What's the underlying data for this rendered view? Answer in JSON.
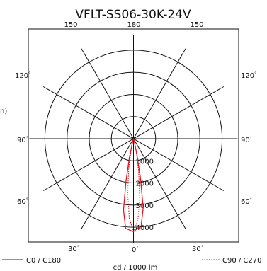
{
  "chart_data": {
    "type": "polar",
    "title": "VFLT-SS06-30K-24V",
    "unit_label": "cd / 1000 lm",
    "y_axis_fragment": "n)",
    "radial_ticks": [
      1000,
      2000,
      3000,
      4000
    ],
    "radial_max": 4700,
    "angle_labels": {
      "top": [
        "150",
        "180",
        "150"
      ],
      "left": [
        "120",
        "90",
        "60",
        "30"
      ],
      "right": [
        "120",
        "90",
        "60",
        "30"
      ],
      "bottom_center": "0"
    },
    "degree_symbol": "°",
    "series": [
      {
        "name": "C0 / C180",
        "color": "#e8141c",
        "style": "solid",
        "points_ccw": [
          [
            0,
            4200
          ],
          [
            5,
            4070
          ],
          [
            8,
            3250
          ],
          [
            10,
            1950
          ],
          [
            12,
            900
          ],
          [
            15,
            200
          ],
          [
            18,
            30
          ],
          [
            25,
            0
          ]
        ],
        "points_cw": [
          [
            0,
            4200
          ],
          [
            5,
            3950
          ],
          [
            8,
            3150
          ],
          [
            10,
            1800
          ],
          [
            12,
            700
          ],
          [
            15,
            150
          ],
          [
            18,
            20
          ],
          [
            25,
            0
          ]
        ]
      },
      {
        "name": "C90 / C270",
        "color": "#e8141c",
        "style": "dotted",
        "points_ccw": [
          [
            0,
            4200
          ],
          [
            3,
            3600
          ],
          [
            6,
            2500
          ],
          [
            9,
            1400
          ],
          [
            12,
            500
          ],
          [
            15,
            120
          ],
          [
            20,
            0
          ]
        ],
        "points_cw": [
          [
            0,
            4200
          ],
          [
            3,
            3700
          ],
          [
            6,
            2700
          ],
          [
            9,
            1500
          ],
          [
            12,
            550
          ],
          [
            15,
            130
          ],
          [
            20,
            0
          ]
        ]
      }
    ]
  }
}
